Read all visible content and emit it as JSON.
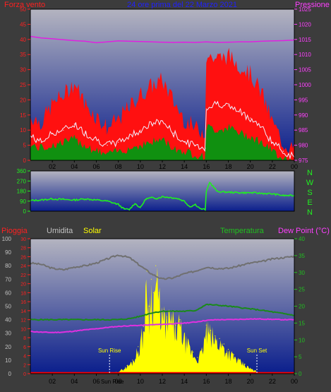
{
  "colors": {
    "background": "#3c3c3c",
    "gradient_top": "#b4b4c0",
    "gradient_bottom": "#0a1e8c",
    "wind_max": "#ff1010",
    "wind_avg": "#f0f0ff",
    "wind_min": "#109010",
    "pressure": "#e020e0",
    "direction": "#20f020",
    "humidity": "#707070",
    "solar": "#ffff00",
    "temperature": "#1a8a1a",
    "dew_point": "#e030e0",
    "rain": "#ff0000",
    "left_axis": "#ff2020",
    "right_axis_pressure": "#ff40ff",
    "right_axis_temp": "#20c020",
    "x_axis": "#000000",
    "title": "#2020ff",
    "humidity_axis": "#c0c0c0"
  },
  "panel1": {
    "title": "24 ore prima del 22 Marzo 2021",
    "label_left": "Forza vento",
    "label_right": "Pressione"
  },
  "panel3": {
    "label_rain": "Pioggia",
    "label_humidity": "Umidita",
    "label_solar": "Solar",
    "label_temperature": "Temperatura",
    "label_dewpoint": "Dew Point (°C)",
    "sunrise_label": "Sun Rise",
    "sunset_label": "Sun Set",
    "x_extra_label": "Sun Rise"
  },
  "compass": [
    "N",
    "W",
    "S",
    "E",
    "N"
  ],
  "chart_data": [
    {
      "type": "area",
      "x_ticks": [
        "02",
        "04",
        "06",
        "08",
        "10",
        "12",
        "14",
        "16",
        "18",
        "20",
        "22",
        "00"
      ],
      "left_axis": {
        "ticks": [
          0,
          5,
          10,
          15,
          20,
          25,
          30,
          35,
          40,
          45,
          50
        ],
        "ylim": [
          0,
          50
        ]
      },
      "right_axis": {
        "ticks": [
          975,
          980,
          985,
          990,
          995,
          1000,
          1005,
          1010,
          1015,
          1020,
          1025
        ],
        "ylim": [
          975,
          1025
        ]
      },
      "series": [
        {
          "name": "Forza vento",
          "hours": [
            0,
            1,
            2,
            3,
            4,
            5,
            6,
            7,
            8,
            9,
            10,
            11,
            12,
            13,
            14,
            15,
            15.9,
            16,
            17,
            18,
            19,
            20,
            21,
            22,
            23,
            24
          ],
          "max": [
            14,
            12,
            18,
            21,
            25,
            18,
            14,
            10,
            13,
            17,
            21,
            24,
            26,
            19,
            13,
            10,
            9,
            34,
            33,
            34,
            31,
            28,
            22,
            12,
            5,
            3
          ],
          "avg": [
            8,
            6,
            9,
            10,
            12,
            9,
            7,
            5,
            6,
            8,
            10,
            12,
            13,
            9,
            6,
            5,
            4,
            17,
            19,
            18,
            16,
            14,
            11,
            6,
            3,
            1
          ],
          "min": [
            5,
            4,
            5,
            6,
            7,
            5,
            3,
            2,
            3,
            4,
            5,
            6,
            7,
            4,
            3,
            2,
            1,
            11,
            10,
            11,
            9,
            8,
            6,
            3,
            1,
            0
          ]
        },
        {
          "name": "Pressione",
          "hours": [
            0,
            1,
            2,
            3,
            4,
            5,
            6,
            7,
            8,
            9,
            10,
            11,
            12,
            13,
            14,
            15,
            16,
            17,
            18,
            19,
            20,
            21,
            22,
            23,
            24
          ],
          "values": [
            1016,
            1015.5,
            1015.2,
            1014.9,
            1014.6,
            1014.4,
            1013.9,
            1014.2,
            1014.5,
            1014.4,
            1014.3,
            1014.2,
            1014.1,
            1014.0,
            1014.1,
            1014.0,
            1014.2,
            1014.0,
            1014.1,
            1014.2,
            1014.2,
            1014.4,
            1014.5,
            1014.6,
            1014.8
          ]
        }
      ]
    },
    {
      "type": "line",
      "y_ticks": [
        0,
        90,
        180,
        270,
        360
      ],
      "ylim": [
        0,
        360
      ],
      "series": [
        {
          "name": "direction",
          "hours": [
            0,
            1,
            2,
            3,
            4,
            5,
            6,
            7,
            8,
            8.5,
            9,
            9.5,
            10,
            10.5,
            11,
            11.5,
            12,
            12.5,
            13,
            13.5,
            14,
            14.5,
            15,
            15.5,
            15.9,
            16,
            16.3,
            17,
            18,
            19,
            20,
            21,
            22,
            23,
            24
          ],
          "values": [
            95,
            100,
            110,
            105,
            100,
            110,
            100,
            90,
            60,
            20,
            15,
            70,
            30,
            110,
            120,
            115,
            130,
            125,
            120,
            110,
            90,
            40,
            60,
            20,
            15,
            170,
            260,
            175,
            170,
            165,
            165,
            160,
            155,
            140,
            140
          ]
        }
      ]
    },
    {
      "type": "line",
      "x_ticks": [
        "02",
        "04",
        "06",
        "08",
        "10",
        "12",
        "14",
        "16",
        "18",
        "20",
        "22",
        "00"
      ],
      "left_axis_humidity": {
        "ticks": [
          0,
          10,
          20,
          30,
          40,
          50,
          60,
          70,
          80,
          90,
          100
        ],
        "ylim": [
          0,
          100
        ]
      },
      "left_axis_rain": {
        "ticks": [
          0,
          2,
          4,
          6,
          8,
          10,
          12,
          14,
          16,
          18,
          20,
          22,
          24,
          26,
          28,
          30
        ],
        "ylim": [
          0,
          30
        ]
      },
      "right_axis": {
        "ticks": [
          0,
          5,
          10,
          15,
          20,
          25,
          30,
          35,
          40
        ],
        "ylim": [
          0,
          40
        ]
      },
      "series": [
        {
          "name": "Umidita",
          "hours": [
            0,
            1,
            2,
            3,
            4,
            5,
            6,
            7,
            8,
            9,
            10,
            11,
            12,
            13,
            14,
            15,
            16,
            17,
            18,
            19,
            20,
            21,
            22,
            23,
            24
          ],
          "values": [
            82,
            81,
            78,
            77,
            79,
            80,
            82,
            85,
            88,
            86,
            80,
            74,
            70,
            71,
            74,
            76,
            79,
            78,
            78,
            80,
            82,
            83,
            85,
            86,
            87
          ]
        },
        {
          "name": "Temperatura",
          "hours": [
            0,
            1,
            2,
            3,
            4,
            5,
            6,
            7,
            8,
            9,
            10,
            11,
            12,
            13,
            14,
            15,
            16,
            17,
            18,
            19,
            20,
            21,
            22,
            23,
            24
          ],
          "values": [
            16,
            16,
            16,
            16,
            16,
            16,
            16,
            16,
            16,
            16.3,
            17,
            18,
            18.5,
            18.5,
            18.5,
            18.7,
            20.5,
            20.3,
            20,
            19.6,
            19.2,
            18.8,
            18.3,
            17.8,
            17.3
          ]
        },
        {
          "name": "Dew Point",
          "hours": [
            0,
            1,
            2,
            3,
            4,
            5,
            6,
            7,
            8,
            9,
            10,
            11,
            12,
            13,
            14,
            15,
            16,
            17,
            18,
            19,
            20,
            21,
            22,
            23,
            24
          ],
          "values": [
            12.5,
            12.3,
            12.2,
            12.3,
            12.6,
            13,
            13.3,
            13.7,
            14,
            14.2,
            14.3,
            14.5,
            14.6,
            14.8,
            15,
            15.3,
            15.8,
            16,
            16,
            16.1,
            16.2,
            16.2,
            16.1,
            16,
            16
          ]
        },
        {
          "name": "Solar",
          "hours": [
            7.3,
            7.8,
            8.3,
            8.8,
            9.3,
            9.8,
            10.3,
            10.6,
            10.8,
            11.0,
            11.2,
            11.4,
            11.7,
            12.0,
            12.4,
            12.8,
            13.2,
            13.6,
            14.0,
            14.4,
            14.8,
            15.2,
            15.6,
            16.0,
            16.4,
            16.8,
            17.2,
            17.6,
            18.0,
            18.5,
            19.0,
            19.5,
            20.0,
            20.5,
            20.8
          ],
          "values": [
            0,
            1,
            3,
            6,
            10,
            20,
            35,
            76,
            50,
            70,
            60,
            80,
            60,
            46,
            42,
            46,
            36,
            40,
            28,
            22,
            16,
            12,
            18,
            36,
            32,
            28,
            26,
            22,
            18,
            14,
            10,
            7,
            4,
            2,
            0
          ]
        },
        {
          "name": "Pioggia",
          "hours": [
            0,
            24
          ],
          "values": [
            0,
            0
          ]
        }
      ],
      "sunrise_hour": 7.2,
      "sunset_hour": 20.6
    }
  ]
}
